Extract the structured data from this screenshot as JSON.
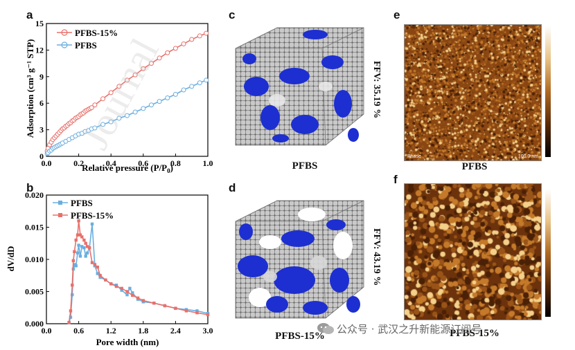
{
  "panels": {
    "a": {
      "letter": "a",
      "xlabel_main": "Relative pressure (P/P",
      "xlabel_sub": "0",
      "xlabel_end": ")",
      "ylabel": "Adsorption (cm³ g⁻¹ STP)",
      "legend": [
        "PFBS-15%",
        "PFBS"
      ]
    },
    "b": {
      "letter": "b",
      "xlabel": "Pore width (nm)",
      "ylabel": "dV/dD",
      "legend": [
        "PFBS",
        "PFBS-15%"
      ]
    },
    "c": {
      "letter": "c",
      "caption": "PFBS",
      "ffv": "FFV: 35.19 %"
    },
    "d": {
      "letter": "d",
      "caption": "PFBS-15%",
      "ffv": "FFV: 43.19 %"
    },
    "e": {
      "letter": "e",
      "caption": "PFBS",
      "phase_label": "Phase",
      "scale_label": "100.0 nm"
    },
    "f": {
      "letter": "f",
      "caption": "PFBS-15%"
    }
  },
  "colors": {
    "red": "#e8706a",
    "blue": "#6aaee0",
    "void": "#1d2fd0"
  },
  "watermark": {
    "text": "公众号 · 武汉之升新能源订阅号",
    "overlay": "Journal"
  },
  "chart_data": [
    {
      "type": "line",
      "title": "",
      "xlabel": "Relative pressure (P/P0)",
      "ylabel": "Adsorption (cm3 g-1 STP)",
      "xlim": [
        0.0,
        1.0
      ],
      "ylim": [
        0,
        15
      ],
      "xticks": [
        "0.0",
        "0.2",
        "0.4",
        "0.6",
        "0.8",
        "1.0"
      ],
      "yticks": [
        "0",
        "3",
        "6",
        "9",
        "12",
        "15"
      ],
      "legend_position": "top-left",
      "series": [
        {
          "name": "PFBS-15%",
          "color": "#e8706a",
          "x": [
            0.005,
            0.01,
            0.02,
            0.03,
            0.04,
            0.05,
            0.06,
            0.07,
            0.08,
            0.09,
            0.1,
            0.11,
            0.12,
            0.13,
            0.14,
            0.15,
            0.16,
            0.17,
            0.18,
            0.19,
            0.2,
            0.21,
            0.22,
            0.23,
            0.24,
            0.25,
            0.26,
            0.27,
            0.28,
            0.3,
            0.35,
            0.4,
            0.45,
            0.5,
            0.55,
            0.6,
            0.65,
            0.7,
            0.75,
            0.8,
            0.85,
            0.9,
            0.95,
            0.99
          ],
          "y": [
            0.6,
            0.9,
            1.3,
            1.6,
            1.9,
            2.1,
            2.3,
            2.5,
            2.7,
            2.9,
            3.1,
            3.2,
            3.4,
            3.5,
            3.7,
            3.8,
            4.0,
            4.1,
            4.3,
            4.4,
            4.5,
            4.7,
            4.8,
            4.9,
            5.1,
            5.2,
            5.3,
            5.4,
            5.5,
            5.8,
            6.5,
            7.2,
            7.9,
            8.6,
            9.2,
            9.9,
            10.5,
            11.1,
            11.7,
            12.2,
            12.7,
            13.2,
            13.6,
            13.9
          ]
        },
        {
          "name": "PFBS",
          "color": "#6aaee0",
          "x": [
            0.005,
            0.01,
            0.02,
            0.03,
            0.04,
            0.05,
            0.06,
            0.07,
            0.08,
            0.09,
            0.1,
            0.12,
            0.14,
            0.16,
            0.18,
            0.2,
            0.22,
            0.24,
            0.26,
            0.28,
            0.3,
            0.35,
            0.4,
            0.45,
            0.5,
            0.55,
            0.6,
            0.65,
            0.7,
            0.75,
            0.8,
            0.85,
            0.9,
            0.95,
            0.99
          ],
          "y": [
            0.3,
            0.4,
            0.6,
            0.7,
            0.9,
            1.0,
            1.1,
            1.2,
            1.3,
            1.4,
            1.5,
            1.7,
            1.9,
            2.1,
            2.3,
            2.5,
            2.6,
            2.8,
            2.9,
            3.1,
            3.2,
            3.6,
            3.9,
            4.3,
            4.6,
            5.0,
            5.4,
            5.8,
            6.2,
            6.6,
            7.0,
            7.5,
            7.9,
            8.3,
            8.6
          ]
        }
      ]
    },
    {
      "type": "line",
      "title": "",
      "xlabel": "Pore width (nm)",
      "ylabel": "dV/dD",
      "xlim": [
        0.0,
        3.0
      ],
      "ylim": [
        0.0,
        0.02
      ],
      "xticks": [
        "0.0",
        "0.6",
        "1.2",
        "1.8",
        "2.4",
        "3.0"
      ],
      "yticks": [
        "0.000",
        "0.005",
        "0.010",
        "0.015",
        "0.020"
      ],
      "legend_position": "top-left",
      "series": [
        {
          "name": "PFBS",
          "color": "#6aaee0",
          "x": [
            0.42,
            0.45,
            0.48,
            0.5,
            0.52,
            0.55,
            0.58,
            0.6,
            0.63,
            0.66,
            0.7,
            0.73,
            0.76,
            0.8,
            0.85,
            0.9,
            0.95,
            1.0,
            1.1,
            1.2,
            1.3,
            1.4,
            1.5,
            1.55,
            1.6,
            1.7,
            1.8,
            2.0,
            2.2,
            2.4,
            2.6,
            2.8,
            3.0
          ],
          "y": [
            0.0002,
            0.001,
            0.0045,
            0.0085,
            0.0092,
            0.009,
            0.011,
            0.0122,
            0.0105,
            0.012,
            0.0118,
            0.0105,
            0.011,
            0.0118,
            0.0155,
            0.009,
            0.0078,
            0.0072,
            0.0068,
            0.0062,
            0.006,
            0.0052,
            0.0045,
            0.0055,
            0.0048,
            0.0038,
            0.0034,
            0.0032,
            0.0028,
            0.0024,
            0.0022,
            0.002,
            0.0016
          ]
        },
        {
          "name": "PFBS-15%",
          "color": "#e8706a",
          "x": [
            0.42,
            0.45,
            0.48,
            0.5,
            0.52,
            0.55,
            0.58,
            0.6,
            0.63,
            0.66,
            0.7,
            0.73,
            0.76,
            0.8,
            0.85,
            0.9,
            0.95,
            1.0,
            1.1,
            1.2,
            1.3,
            1.4,
            1.5,
            1.6,
            1.7,
            1.8,
            2.0,
            2.2,
            2.4,
            2.6,
            2.8,
            3.0
          ],
          "y": [
            0.0002,
            0.002,
            0.006,
            0.0098,
            0.0112,
            0.013,
            0.0138,
            0.016,
            0.0138,
            0.0135,
            0.013,
            0.0125,
            0.012,
            0.0118,
            0.0095,
            0.0092,
            0.0088,
            0.0075,
            0.0068,
            0.0062,
            0.0058,
            0.0055,
            0.005,
            0.0044,
            0.004,
            0.0036,
            0.0032,
            0.0028,
            0.0024,
            0.002,
            0.0017,
            0.0014
          ]
        }
      ]
    }
  ]
}
